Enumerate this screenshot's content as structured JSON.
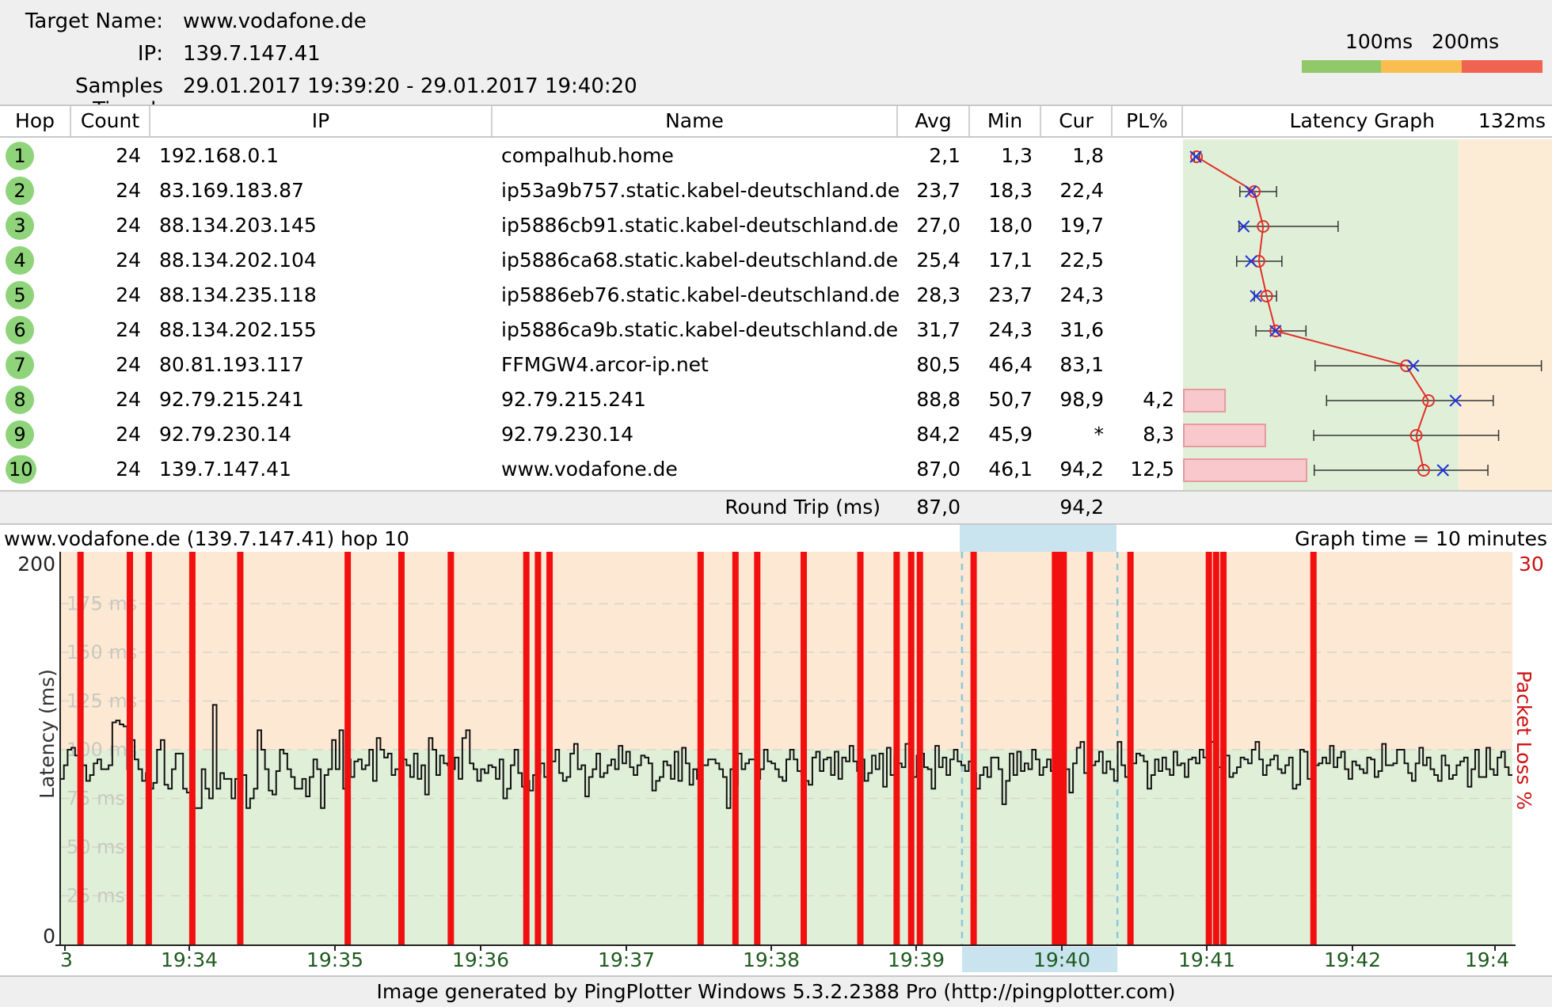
{
  "header": {
    "target_label": "Target Name:",
    "target_value": "www.vodafone.de",
    "ip_label": "IP:",
    "ip_value": "139.7.147.41",
    "samples_label": "Samples Timed:",
    "samples_value": "29.01.2017 19:39:20 - 29.01.2017 19:40:20",
    "legend_100": "100ms",
    "legend_200": "200ms",
    "legend_colors": [
      "#90c86a",
      "#f9be4f",
      "#f06350"
    ]
  },
  "table": {
    "columns": {
      "hop": "Hop",
      "count": "Count",
      "ip": "IP",
      "name": "Name",
      "avg": "Avg",
      "min": "Min",
      "cur": "Cur",
      "pl": "PL%",
      "graph": "Latency Graph",
      "graph_max": "132ms"
    },
    "graph_max_ms": 132,
    "rows": [
      {
        "hop": "1",
        "count": "24",
        "ip": "192.168.0.1",
        "name": "compalhub.home",
        "avg": "2,1",
        "min": "1,3",
        "cur": "1,8",
        "pl": "",
        "avg_v": 2.1,
        "min_v": 1.3,
        "cur_v": 1.8,
        "max_v": 3.2,
        "pl_v": 0
      },
      {
        "hop": "2",
        "count": "24",
        "ip": "83.169.183.87",
        "name": "ip53a9b757.static.kabel-deutschland.de",
        "avg": "23,7",
        "min": "18,3",
        "cur": "22,4",
        "pl": "",
        "avg_v": 23.7,
        "min_v": 18.3,
        "cur_v": 22.4,
        "max_v": 32,
        "pl_v": 0
      },
      {
        "hop": "3",
        "count": "24",
        "ip": "88.134.203.145",
        "name": "ip5886cb91.static.kabel-deutschland.de",
        "avg": "27,0",
        "min": "18,0",
        "cur": "19,7",
        "pl": "",
        "avg_v": 27.0,
        "min_v": 18.0,
        "cur_v": 19.7,
        "max_v": 55,
        "pl_v": 0
      },
      {
        "hop": "4",
        "count": "24",
        "ip": "88.134.202.104",
        "name": "ip5886ca68.static.kabel-deutschland.de",
        "avg": "25,4",
        "min": "17,1",
        "cur": "22,5",
        "pl": "",
        "avg_v": 25.4,
        "min_v": 17.1,
        "cur_v": 22.5,
        "max_v": 34,
        "pl_v": 0
      },
      {
        "hop": "5",
        "count": "24",
        "ip": "88.134.235.118",
        "name": "ip5886eb76.static.kabel-deutschland.de",
        "avg": "28,3",
        "min": "23,7",
        "cur": "24,3",
        "pl": "",
        "avg_v": 28.3,
        "min_v": 23.7,
        "cur_v": 24.3,
        "max_v": 32,
        "pl_v": 0
      },
      {
        "hop": "6",
        "count": "24",
        "ip": "88.134.202.155",
        "name": "ip5886ca9b.static.kabel-deutschland.de",
        "avg": "31,7",
        "min": "24,3",
        "cur": "31,6",
        "pl": "",
        "avg_v": 31.7,
        "min_v": 24.3,
        "cur_v": 31.6,
        "max_v": 43,
        "pl_v": 0
      },
      {
        "hop": "7",
        "count": "24",
        "ip": "80.81.193.117",
        "name": "FFMGW4.arcor-ip.net",
        "avg": "80,5",
        "min": "46,4",
        "cur": "83,1",
        "pl": "",
        "avg_v": 80.5,
        "min_v": 46.4,
        "cur_v": 83.1,
        "max_v": 131,
        "pl_v": 0
      },
      {
        "hop": "8",
        "count": "24",
        "ip": "92.79.215.241",
        "name": "92.79.215.241",
        "avg": "88,8",
        "min": "50,7",
        "cur": "98,9",
        "pl": "4,2",
        "avg_v": 88.8,
        "min_v": 50.7,
        "cur_v": 98.9,
        "max_v": 113,
        "pl_v": 4.2
      },
      {
        "hop": "9",
        "count": "24",
        "ip": "92.79.230.14",
        "name": "92.79.230.14",
        "avg": "84,2",
        "min": "45,9",
        "cur": "*",
        "pl": "8,3",
        "avg_v": 84.2,
        "min_v": 45.9,
        "cur_v": null,
        "max_v": 115,
        "pl_v": 8.3
      },
      {
        "hop": "10",
        "count": "24",
        "ip": "139.7.147.41",
        "name": "www.vodafone.de",
        "avg": "87,0",
        "min": "46,1",
        "cur": "94,2",
        "pl": "12,5",
        "avg_v": 87.0,
        "min_v": 46.1,
        "cur_v": 94.2,
        "max_v": 111,
        "pl_v": 12.5
      }
    ],
    "roundtrip": {
      "label": "Round Trip (ms)",
      "avg": "87,0",
      "cur": "94,2"
    }
  },
  "timegraph": {
    "title": "www.vodafone.de (139.7.147.41) hop 10",
    "graph_time": "Graph time = 10 minutes",
    "y_axis_label": "Latency (ms)",
    "y2_axis_label": "Packet Loss %",
    "y_top": "200",
    "y_bottom": "0",
    "y2_top": "30",
    "ms_labels": [
      "175 ms",
      "150 ms",
      "125 ms",
      "100 ms",
      "75 ms",
      "50 ms",
      "25 ms"
    ],
    "ms_values": [
      175,
      150,
      125,
      100,
      75,
      50,
      25
    ],
    "x_labels": [
      "3",
      "19:34",
      "19:35",
      "19:36",
      "19:37",
      "19:38",
      "19:39",
      "19:40",
      "19:41",
      "19:42",
      "19:4"
    ],
    "loss_positions": [
      0.014,
      0.048,
      0.061,
      0.091,
      0.124,
      0.198,
      0.235,
      0.269,
      0.321,
      0.329,
      0.337,
      0.441,
      0.465,
      0.48,
      0.512,
      0.551,
      0.576,
      0.586,
      0.592,
      0.629,
      0.685,
      0.688,
      0.691,
      0.709,
      0.737,
      0.791,
      0.796,
      0.801,
      0.863
    ],
    "highlight_range": [
      0.621,
      0.728
    ],
    "chart_data": {
      "type": "line",
      "ylim": [
        0,
        200
      ],
      "latency_ms": [
        85,
        92,
        100,
        101,
        97,
        89,
        92,
        84,
        87,
        93,
        95,
        90,
        90,
        92,
        114,
        115,
        113,
        112,
        90,
        105,
        95,
        90,
        84,
        88,
        80,
        83,
        100,
        105,
        82,
        80,
        90,
        98,
        98,
        80,
        78,
        85,
        70,
        70,
        90,
        80,
        75,
        123,
        80,
        88,
        85,
        85,
        75,
        85,
        80,
        87,
        70,
        75,
        80,
        110,
        100,
        90,
        79,
        77,
        89,
        100,
        98,
        90,
        86,
        80,
        80,
        85,
        76,
        86,
        95,
        90,
        70,
        87,
        90,
        105,
        90,
        110,
        80,
        95,
        86,
        94,
        95,
        90,
        92,
        100,
        84,
        106,
        100,
        96,
        98,
        87,
        90,
        80,
        95,
        92,
        86,
        98,
        85,
        92,
        77,
        106,
        100,
        87,
        97,
        93,
        92,
        90,
        96,
        85,
        106,
        110,
        93,
        90,
        84,
        90,
        88,
        92,
        91,
        85,
        95,
        75,
        80,
        92,
        100,
        88,
        81,
        84,
        79,
        87,
        88,
        93,
        86,
        95,
        94,
        100,
        88,
        84,
        86,
        98,
        103,
        90,
        92,
        76,
        86,
        90,
        98,
        86,
        88,
        92,
        95,
        90,
        102,
        93,
        99,
        91,
        87,
        92,
        97,
        96,
        93,
        79,
        84,
        86,
        94,
        92,
        85,
        99,
        84,
        101,
        93,
        82,
        90,
        85,
        92,
        92,
        95,
        95,
        93,
        90,
        86,
        70,
        90,
        82,
        98,
        90,
        93,
        95,
        95,
        85,
        90,
        100,
        94,
        93,
        90,
        86,
        84,
        95,
        100,
        95,
        89,
        88,
        84,
        82,
        96,
        99,
        89,
        95,
        96,
        87,
        99,
        85,
        96,
        94,
        102,
        94,
        89,
        95,
        84,
        88,
        97,
        90,
        98,
        81,
        101,
        87,
        96,
        93,
        91,
        103,
        94,
        86,
        97,
        98,
        91,
        90,
        80,
        102,
        91,
        96,
        87,
        95,
        100,
        94,
        92,
        89,
        94,
        88,
        80,
        87,
        91,
        86,
        96,
        96,
        90,
        72,
        84,
        98,
        87,
        99,
        89,
        93,
        90,
        100,
        95,
        87,
        91,
        95,
        89,
        94,
        90,
        96,
        90,
        78,
        93,
        101,
        104,
        88,
        85,
        92,
        94,
        99,
        88,
        94,
        90,
        84,
        104,
        92,
        86,
        96,
        93,
        98,
        97,
        94,
        80,
        87,
        95,
        89,
        96,
        90,
        87,
        99,
        92,
        93,
        86,
        95,
        96,
        93,
        100,
        96,
        95,
        104,
        92,
        91,
        95,
        97,
        86,
        88,
        91,
        96,
        95,
        93,
        100,
        104,
        95,
        87,
        92,
        95,
        97,
        90,
        88,
        92,
        96,
        80,
        82,
        100,
        99,
        85,
        94,
        92,
        93,
        96,
        93,
        102,
        91,
        96,
        99,
        90,
        85,
        94,
        92,
        90,
        88,
        96,
        95,
        86,
        89,
        103,
        92,
        92,
        93,
        100,
        100,
        93,
        88,
        84,
        93,
        101,
        92,
        96,
        90,
        87,
        84,
        97,
        92,
        85,
        87,
        92,
        94,
        96,
        81,
        90,
        100,
        86,
        86,
        101,
        90,
        87,
        96,
        99,
        91,
        87
      ]
    }
  },
  "footer": "Image generated by PingPlotter Windows 5.3.2.2388 Pro (http://pingplotter.com)"
}
